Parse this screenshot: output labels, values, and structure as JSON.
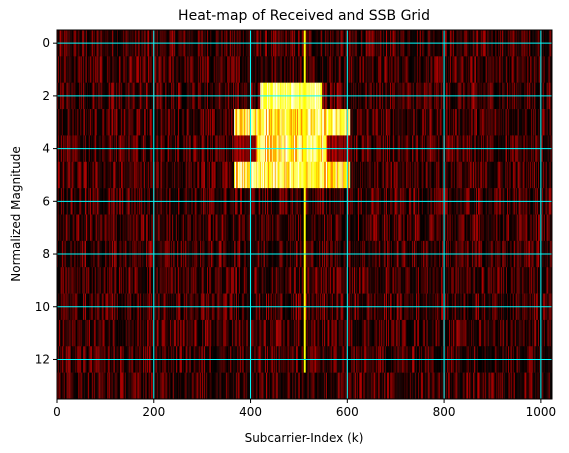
{
  "chart_data": {
    "type": "heatmap",
    "title": "Heat-map of Received and SSB Grid",
    "xlabel": "Subcarrier-Index (k)",
    "ylabel": "Normalized Magnitude",
    "xlim": [
      0,
      1023
    ],
    "ylim": [
      13.5,
      -0.5
    ],
    "x_ticks": [
      0,
      200,
      400,
      600,
      800,
      1000
    ],
    "y_ticks": [
      0,
      2,
      4,
      6,
      8,
      10,
      12
    ],
    "grid": true,
    "grid_color": "#00ffff",
    "colormap": "hot",
    "rows": 14,
    "columns": 1024,
    "background_level_range": [
      0.0,
      0.22
    ],
    "center_spike": {
      "k": 511,
      "symbols": [
        0,
        12
      ],
      "level": 0.75
    },
    "ssb_blocks": [
      {
        "symbols": [
          2,
          2
        ],
        "k_range": [
          420,
          546
        ],
        "level_range": [
          0.75,
          1.0
        ]
      },
      {
        "symbols": [
          3,
          5
        ],
        "k_range": [
          366,
          605
        ],
        "level_range": [
          0.55,
          1.0
        ]
      }
    ],
    "ssb_gaps": [
      {
        "symbol": 4,
        "k_ranges": [
          [
            366,
            411
          ],
          [
            558,
            605
          ]
        ],
        "level": 0.2
      }
    ]
  }
}
